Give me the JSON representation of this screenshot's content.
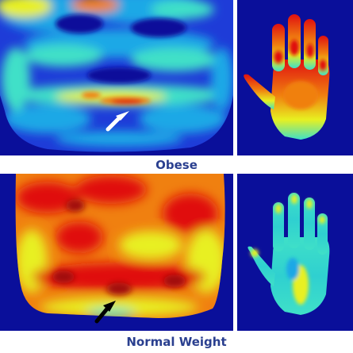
{
  "captions": {
    "obese": "Obese",
    "normal": "Normal Weight"
  },
  "panels": [
    {
      "id": "obese-abdomen",
      "icon": "thermal-abdomen-image"
    },
    {
      "id": "obese-hand",
      "icon": "thermal-hand-image"
    },
    {
      "id": "normal-abdomen",
      "icon": "thermal-abdomen-image"
    },
    {
      "id": "normal-hand",
      "icon": "thermal-hand-image"
    }
  ],
  "colors": {
    "background": "#0a0f9a",
    "cold": "#1e3cd8",
    "cool": "#1fa8e6",
    "mid": "#3fe0c8",
    "warm": "#e8f020",
    "hot": "#f08010",
    "hottest": "#e01010",
    "caption": "#2a3f8f",
    "arrow_obese": "#ffffff",
    "arrow_normal": "#000000"
  }
}
